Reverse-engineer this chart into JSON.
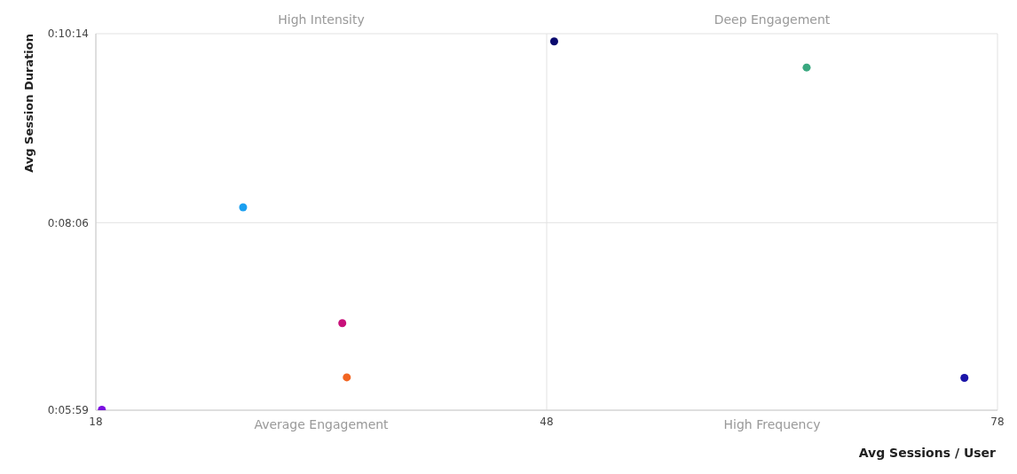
{
  "chart_data": {
    "type": "scatter",
    "xlabel": "Avg Sessions / User",
    "ylabel": "Avg Session Duration",
    "annotations": [
      "High Intensity",
      "Deep Engagement",
      "Average Engagement",
      "High Frequency"
    ],
    "x": [
      48.5,
      65.3,
      27.8,
      34.4,
      34.7,
      75.8,
      18.4
    ],
    "values": [
      0.1691,
      0.1642,
      0.1379,
      0.1161,
      0.1059,
      0.1058,
      0.0998
    ],
    "colors": [
      "#0a0a6e",
      "#3aa880",
      "#1a9ff0",
      "#c8107a",
      "#f26522",
      "#1a14a8",
      "#7a10e0"
    ],
    "xlim": [
      18,
      78
    ],
    "xticks": [
      18,
      48,
      78
    ],
    "ylim": [
      0.09972,
      0.17056
    ],
    "yticks": [
      {
        "value": 0.09972,
        "label": "0:05:59"
      },
      {
        "value": 0.135,
        "label": "0:08:06"
      },
      {
        "value": 0.17056,
        "label": "0:10:14"
      }
    ],
    "grid": true
  }
}
